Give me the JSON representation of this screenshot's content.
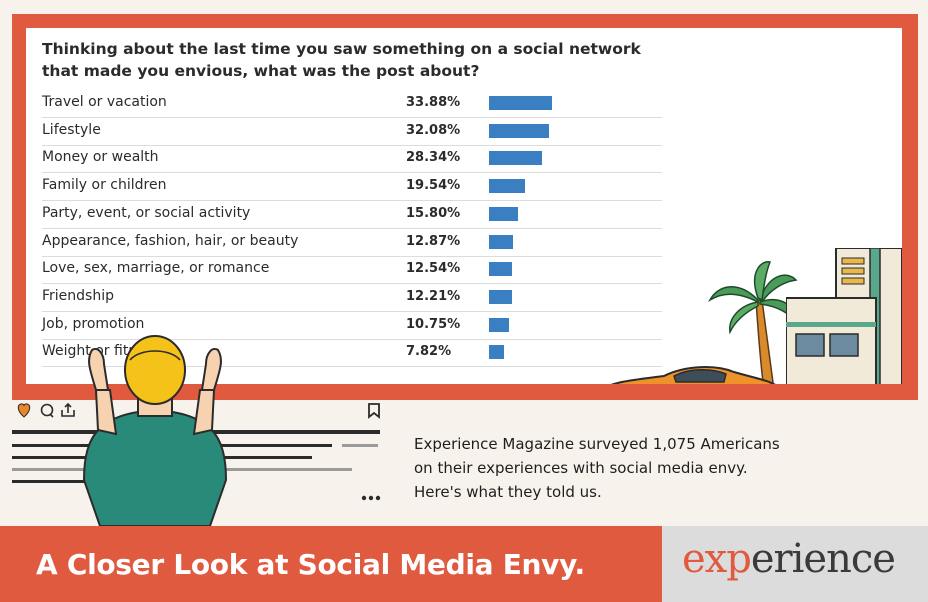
{
  "chart_data": {
    "type": "bar",
    "title": "Thinking about the last time you saw something on a social network that made you envious, what was the post about?",
    "categories": [
      "Travel or vacation",
      "Lifestyle",
      "Money or wealth",
      "Family or children",
      "Party, event, or social activity",
      "Appearance, fashion, hair, or beauty",
      "Love, sex, marriage, or romance",
      "Friendship",
      "Job, promotion",
      "Weight or fitness"
    ],
    "values": [
      33.88,
      32.08,
      28.34,
      19.54,
      15.8,
      12.87,
      12.54,
      12.21,
      10.75,
      7.82
    ],
    "value_labels": [
      "33.88%",
      "32.08%",
      "28.34%",
      "19.54%",
      "15.80%",
      "12.87%",
      "12.54%",
      "12.21%",
      "10.75%",
      "7.82%"
    ],
    "bar_color": "#3a7fc1",
    "xlim": [
      0,
      100
    ],
    "grid": false
  },
  "caption": "Experience Magazine surveyed 1,075 Americans on their experiences with social media envy. Here's what they told us.",
  "footer": {
    "title": "A Closer Look at Social Media Envy.",
    "logo_part1": "exp",
    "logo_part2": "erience"
  },
  "colors": {
    "accent": "#e05a40",
    "bar": "#3a7fc1",
    "footer_right": "#dcdcdc"
  },
  "icons": [
    "heart-icon",
    "comment-icon",
    "share-icon",
    "bookmark-icon",
    "more-icon"
  ]
}
